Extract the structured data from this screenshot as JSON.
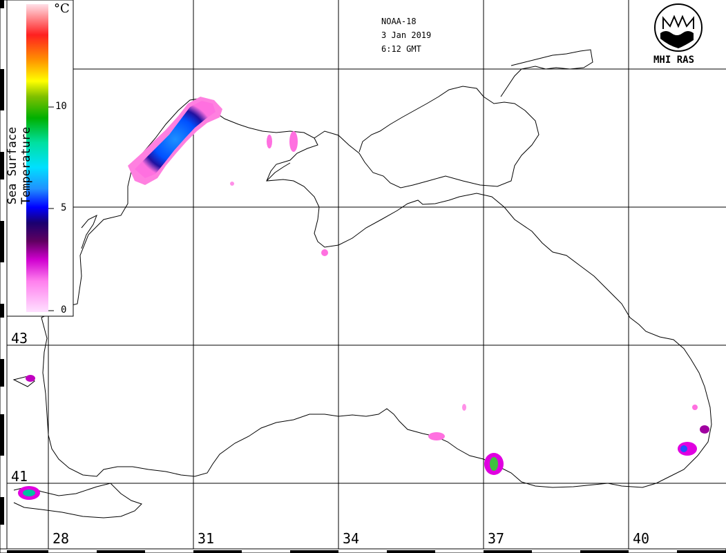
{
  "header": {
    "satellite": "NOAA-18",
    "date": "3 Jan 2019",
    "time": "6:12 GMT"
  },
  "logo": {
    "text": "MHI RAS"
  },
  "colorbar": {
    "title": "Sea Surface Temperature",
    "unit": "°C",
    "ticks": [
      "10",
      "5",
      "0"
    ],
    "range": [
      0,
      15
    ],
    "colors": [
      "#ffd8ff",
      "#ff7fe0",
      "#e000e0",
      "#7a0a7a",
      "#1a0a6a",
      "#0000ff",
      "#1e7eff",
      "#00d8ff",
      "#00e0a0",
      "#00c040",
      "#00a000",
      "#a0d000",
      "#ffff00",
      "#ff9000",
      "#ff2000",
      "#ff8080",
      "#ffd8e0"
    ]
  },
  "axes": {
    "lat_labels": [
      "43",
      "41"
    ],
    "lon_labels": [
      "28",
      "31",
      "34",
      "37",
      "40"
    ]
  }
}
